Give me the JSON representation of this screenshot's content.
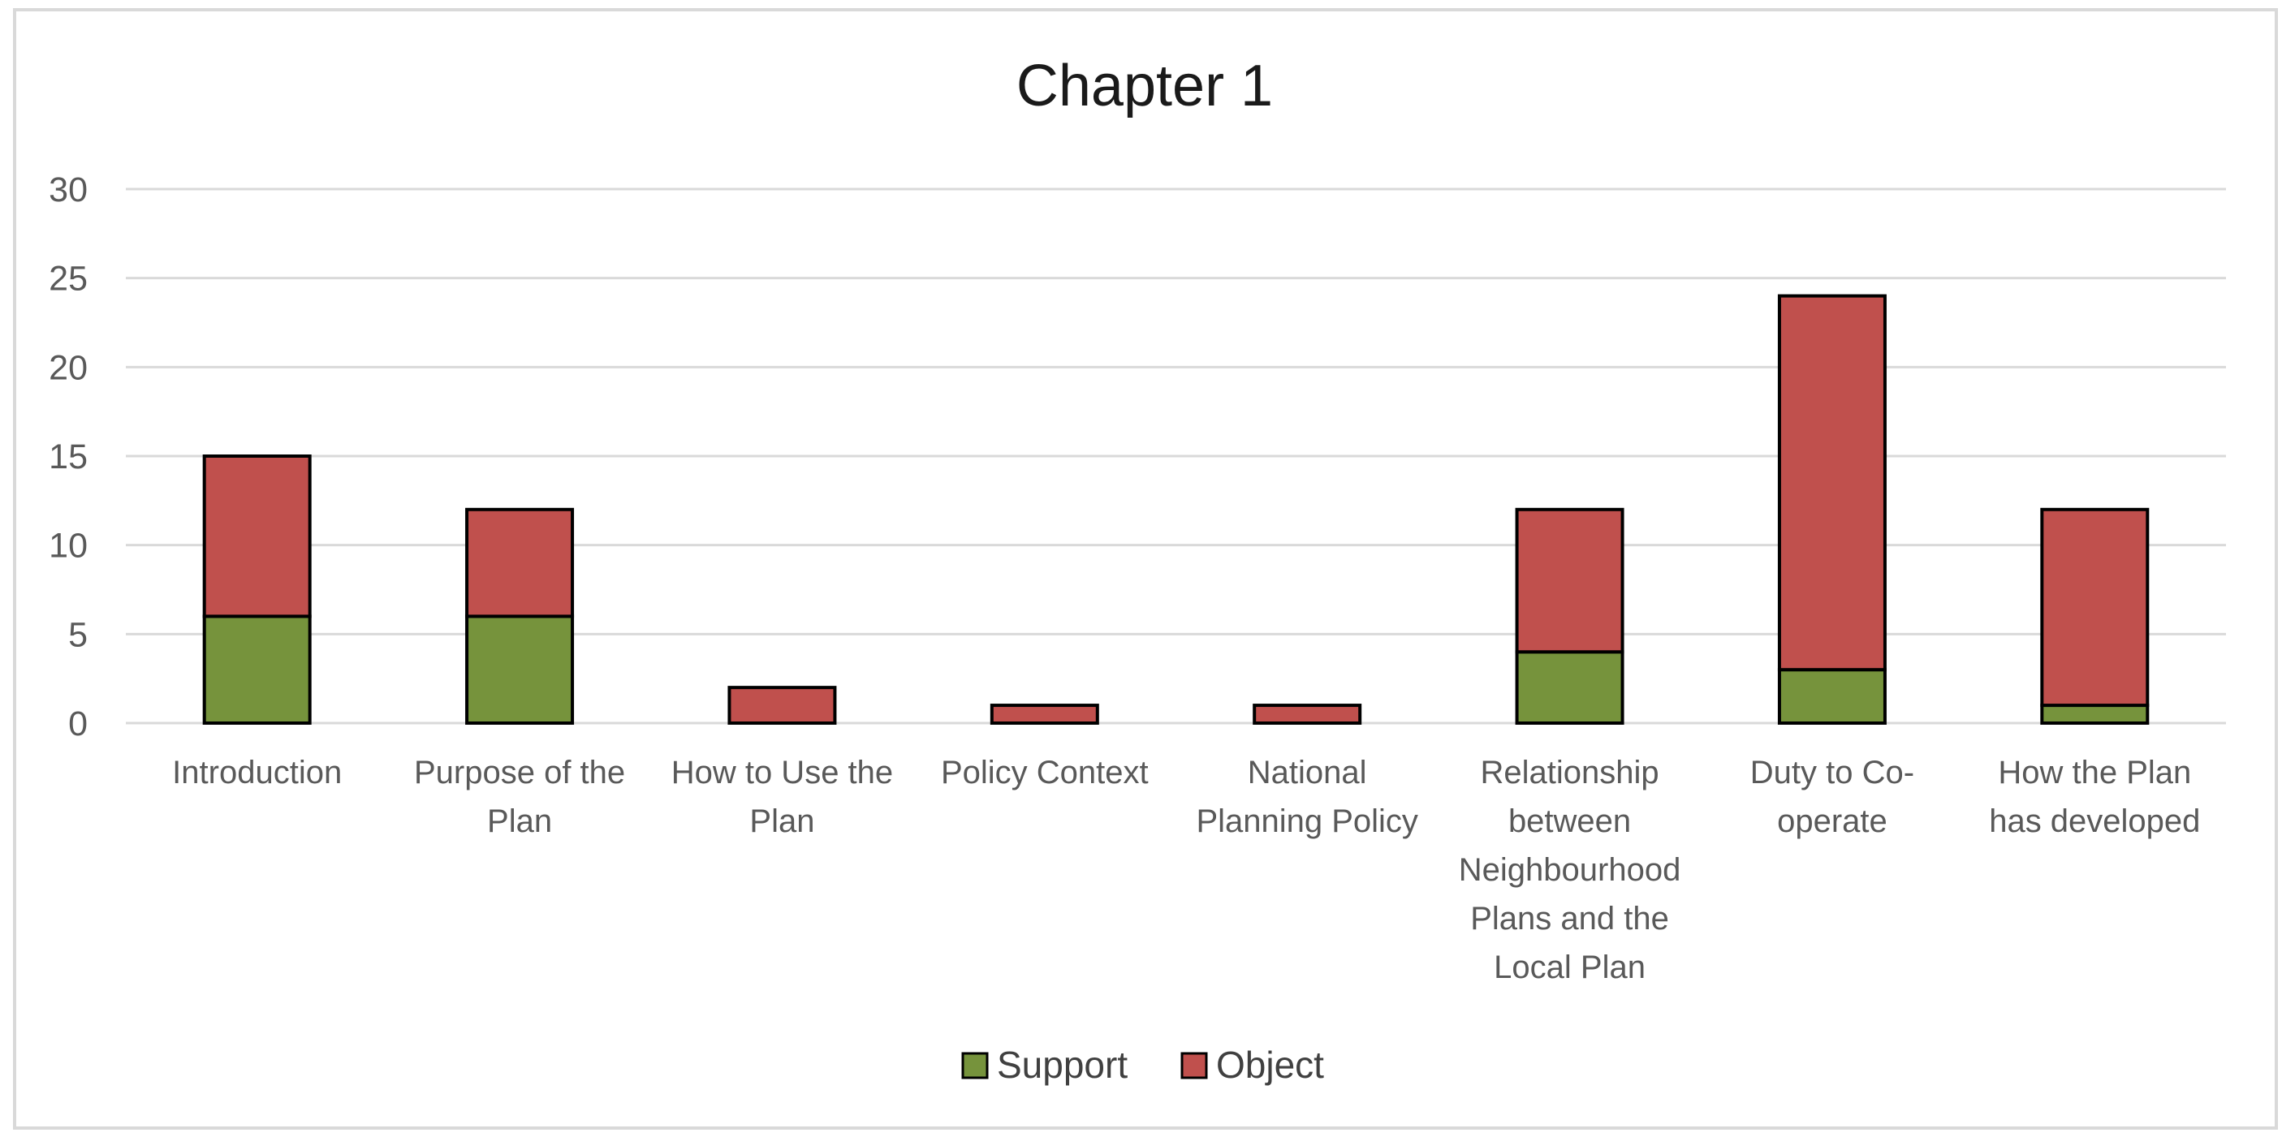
{
  "chart_data": {
    "type": "bar",
    "stacked": true,
    "title": "Chapter 1",
    "xlabel": "",
    "ylabel": "",
    "ylim": [
      0,
      30
    ],
    "yticks": [
      0,
      5,
      10,
      15,
      20,
      25,
      30
    ],
    "grid": true,
    "legend_position": "bottom",
    "categories": [
      [
        "Introduction"
      ],
      [
        "Purpose of the",
        "Plan"
      ],
      [
        "How to Use the",
        "Plan"
      ],
      [
        "Policy Context"
      ],
      [
        "National",
        "Planning Policy"
      ],
      [
        "Relationship",
        "between",
        "Neighbourhood",
        "Plans and the",
        "Local Plan"
      ],
      [
        "Duty to Co-",
        "operate"
      ],
      [
        "How the Plan",
        "has developed"
      ]
    ],
    "series": [
      {
        "name": "Support",
        "color": "#76933c",
        "values": [
          6,
          6,
          0,
          0,
          0,
          4,
          3,
          1
        ]
      },
      {
        "name": "Object",
        "color": "#c0504d",
        "values": [
          9,
          6,
          2,
          1,
          1,
          8,
          21,
          11
        ]
      }
    ],
    "gridline_color": "#d9d9d9",
    "bar_outline_color": "#000000"
  }
}
